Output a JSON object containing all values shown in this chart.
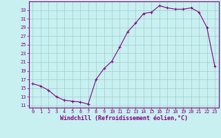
{
  "x": [
    0,
    1,
    2,
    3,
    4,
    5,
    6,
    7,
    8,
    9,
    10,
    11,
    12,
    13,
    14,
    15,
    16,
    17,
    18,
    19,
    20,
    21,
    22,
    23
  ],
  "y": [
    16.0,
    15.5,
    14.5,
    13.0,
    12.2,
    12.0,
    11.8,
    11.3,
    17.0,
    19.5,
    21.2,
    24.5,
    28.0,
    30.0,
    32.2,
    32.5,
    34.0,
    33.5,
    33.2,
    33.2,
    33.5,
    32.5,
    29.0,
    20.0
  ],
  "line_color": "#800080",
  "marker": "+",
  "marker_size": 3.0,
  "background_color": "#c8f0f0",
  "grid_color": "#a0cccc",
  "xlabel": "Windchill (Refroidissement éolien,°C)",
  "xlabel_fontsize": 6.0,
  "ylabel_ticks": [
    11,
    13,
    15,
    17,
    19,
    21,
    23,
    25,
    27,
    29,
    31,
    33
  ],
  "ylim": [
    10.5,
    35.0
  ],
  "xlim": [
    -0.5,
    23.5
  ],
  "xticks": [
    0,
    1,
    2,
    3,
    4,
    5,
    6,
    7,
    8,
    9,
    10,
    11,
    12,
    13,
    14,
    15,
    16,
    17,
    18,
    19,
    20,
    21,
    22,
    23
  ],
  "tick_fontsize": 5.0,
  "tick_color": "#800080",
  "spine_color": "#800080",
  "linewidth": 0.8,
  "marker_color": "#800080"
}
